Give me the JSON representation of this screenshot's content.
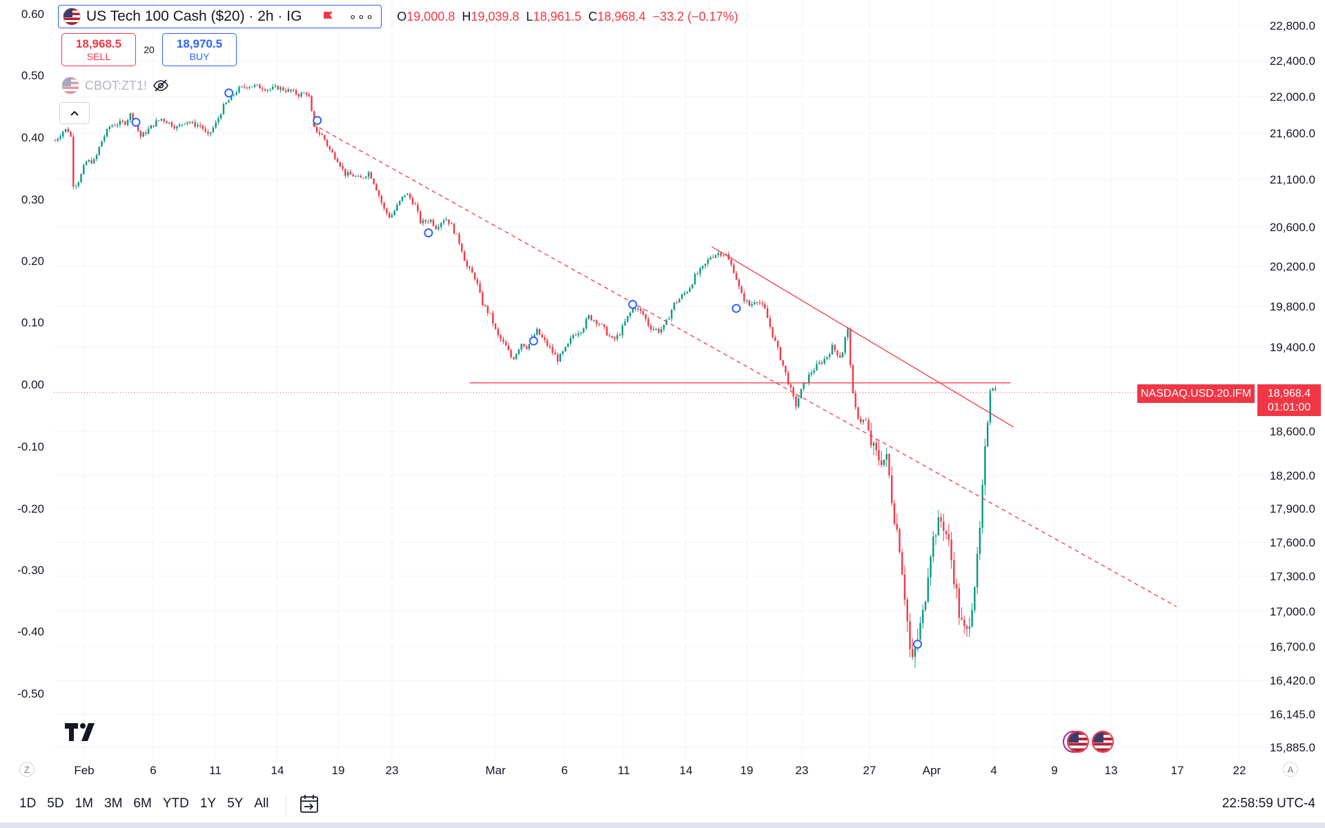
{
  "header": {
    "symbol_title": "US Tech 100 Cash ($20) · 2h · IG",
    "flag_icon": "us-flag-icon",
    "ohlc": {
      "o_label": "O",
      "o_value": "19,000.8",
      "h_label": "H",
      "h_value": "19,039.8",
      "l_label": "L",
      "l_value": "18,961.5",
      "c_label": "C",
      "c_value": "18,968.4",
      "change": "−33.2 (−0.17%)"
    }
  },
  "trade": {
    "sell_price": "18,968.5",
    "sell_label": "SELL",
    "spread": "20",
    "buy_price": "18,970.5",
    "buy_label": "BUY"
  },
  "compare": {
    "symbol": "CBOT:ZT1!"
  },
  "price_tag": {
    "symbol": "NASDAQ.USD.20.IFM",
    "price": "18,968.4",
    "countdown": "01:01:00"
  },
  "bottom": {
    "ranges": [
      "1D",
      "5D",
      "1M",
      "3M",
      "6M",
      "YTD",
      "1Y",
      "5Y",
      "All"
    ],
    "clock": "22:58:59 UTC-4",
    "left_axis_btn": "Z",
    "right_axis_btn": "A"
  },
  "colors": {
    "up": "#089981",
    "down": "#f23645",
    "accent": "#2962ff"
  },
  "chart_data": {
    "type": "candlestick",
    "title": "US Tech 100 Cash ($20) · 2h · IG",
    "right_axis_ticks": [
      "22,800.0",
      "22,400.0",
      "22,000.0",
      "21,600.0",
      "21,100.0",
      "20,600.0",
      "20,200.0",
      "19,800.0",
      "19,400.0",
      "18,600.0",
      "18,200.0",
      "17,900.0",
      "17,600.0",
      "17,300.0",
      "17,000.0",
      "16,700.0",
      "16,420.0",
      "16,145.0",
      "15,885.0"
    ],
    "left_axis_ticks": [
      "0.60",
      "0.50",
      "0.40",
      "0.30",
      "0.20",
      "0.10",
      "0.00",
      "-0.10",
      "-0.20",
      "-0.30",
      "-0.40",
      "-0.50"
    ],
    "x_ticks": [
      "Feb",
      "6",
      "11",
      "14",
      "19",
      "23",
      "Mar",
      "6",
      "11",
      "14",
      "19",
      "23",
      "27",
      "Apr",
      "4",
      "9",
      "13",
      "17",
      "22"
    ],
    "price_path": [
      [
        0.0,
        21520
      ],
      [
        0.6,
        21640
      ],
      [
        1.0,
        21620
      ],
      [
        1.2,
        21020
      ],
      [
        1.6,
        21100
      ],
      [
        2.0,
        21290
      ],
      [
        2.6,
        21300
      ],
      [
        3.0,
        21500
      ],
      [
        3.6,
        21680
      ],
      [
        4.0,
        21700
      ],
      [
        4.6,
        21720
      ],
      [
        5.0,
        21820
      ],
      [
        5.6,
        21560
      ],
      [
        6.0,
        21620
      ],
      [
        6.6,
        21720
      ],
      [
        7.0,
        21760
      ],
      [
        7.6,
        21700
      ],
      [
        8.0,
        21660
      ],
      [
        8.6,
        21740
      ],
      [
        9.0,
        21700
      ],
      [
        9.6,
        21680
      ],
      [
        10.0,
        21560
      ],
      [
        10.6,
        21720
      ],
      [
        11.0,
        21880
      ],
      [
        11.6,
        22000
      ],
      [
        12.0,
        22080
      ],
      [
        12.6,
        22120
      ],
      [
        13.0,
        22120
      ],
      [
        13.6,
        22100
      ],
      [
        14.0,
        22080
      ],
      [
        14.6,
        22100
      ],
      [
        15.0,
        22080
      ],
      [
        15.6,
        22050
      ],
      [
        16.0,
        22020
      ],
      [
        16.6,
        22050
      ],
      [
        17.0,
        21650
      ],
      [
        17.6,
        21560
      ],
      [
        18.0,
        21420
      ],
      [
        18.6,
        21300
      ],
      [
        19.0,
        21160
      ],
      [
        19.6,
        21140
      ],
      [
        20.0,
        21100
      ],
      [
        20.6,
        21180
      ],
      [
        21.0,
        21040
      ],
      [
        21.6,
        20780
      ],
      [
        22.0,
        20700
      ],
      [
        22.6,
        20860
      ],
      [
        23.0,
        20960
      ],
      [
        23.6,
        20840
      ],
      [
        24.0,
        20640
      ],
      [
        24.6,
        20680
      ],
      [
        25.0,
        20600
      ],
      [
        25.6,
        20700
      ],
      [
        26.0,
        20620
      ],
      [
        26.6,
        20420
      ],
      [
        27.0,
        20200
      ],
      [
        27.6,
        20080
      ],
      [
        28.0,
        19840
      ],
      [
        28.6,
        19700
      ],
      [
        29.0,
        19520
      ],
      [
        29.6,
        19400
      ],
      [
        30.0,
        19280
      ],
      [
        30.6,
        19440
      ],
      [
        31.0,
        19400
      ],
      [
        31.6,
        19560
      ],
      [
        32.0,
        19480
      ],
      [
        32.6,
        19360
      ],
      [
        33.0,
        19280
      ],
      [
        33.6,
        19400
      ],
      [
        34.0,
        19520
      ],
      [
        34.6,
        19580
      ],
      [
        35.0,
        19700
      ],
      [
        35.6,
        19650
      ],
      [
        36.0,
        19580
      ],
      [
        36.6,
        19460
      ],
      [
        37.0,
        19520
      ],
      [
        37.6,
        19700
      ],
      [
        38.0,
        19800
      ],
      [
        38.6,
        19720
      ],
      [
        39.0,
        19600
      ],
      [
        39.6,
        19560
      ],
      [
        40.0,
        19600
      ],
      [
        40.6,
        19820
      ],
      [
        41.0,
        19880
      ],
      [
        41.6,
        19980
      ],
      [
        42.0,
        20100
      ],
      [
        42.6,
        20200
      ],
      [
        43.0,
        20300
      ],
      [
        43.6,
        20340
      ],
      [
        44.0,
        20320
      ],
      [
        44.6,
        20140
      ],
      [
        45.0,
        19920
      ],
      [
        45.6,
        19800
      ],
      [
        46.0,
        19880
      ],
      [
        46.6,
        19760
      ],
      [
        47.0,
        19560
      ],
      [
        47.6,
        19300
      ],
      [
        48.0,
        19120
      ],
      [
        48.6,
        18840
      ],
      [
        49.0,
        19000
      ],
      [
        49.6,
        19160
      ],
      [
        50.0,
        19220
      ],
      [
        50.6,
        19300
      ],
      [
        51.0,
        19400
      ],
      [
        51.6,
        19300
      ],
      [
        52.0,
        19600
      ],
      [
        52.4,
        18860
      ],
      [
        52.8,
        18700
      ],
      [
        53.2,
        18700
      ],
      [
        53.6,
        18460
      ],
      [
        54.0,
        18360
      ],
      [
        54.6,
        18340
      ],
      [
        55.0,
        17900
      ],
      [
        55.4,
        17600
      ],
      [
        55.8,
        17100
      ],
      [
        56.2,
        16520
      ],
      [
        56.6,
        16760
      ],
      [
        57.0,
        17000
      ],
      [
        57.4,
        17500
      ],
      [
        57.8,
        17720
      ],
      [
        58.2,
        17800
      ],
      [
        58.6,
        17620
      ],
      [
        59.0,
        17300
      ],
      [
        59.4,
        16920
      ],
      [
        59.8,
        16780
      ],
      [
        60.2,
        17100
      ],
      [
        60.6,
        17500
      ],
      [
        61.0,
        18340
      ],
      [
        61.4,
        19060
      ],
      [
        61.8,
        18968
      ]
    ],
    "trendlines": [
      {
        "style": "dashed",
        "from": [
          16.9,
          21700
        ],
        "to": [
          73.6,
          17040
        ]
      },
      {
        "style": "solid",
        "from": [
          43.1,
          20400
        ],
        "to": [
          62.9,
          18640
        ]
      },
      {
        "style": "solid",
        "from": [
          27.2,
          19060
        ],
        "to": [
          62.7,
          19060
        ]
      }
    ],
    "last_price": 18968.4,
    "y_range": [
      15800,
      23000
    ],
    "x_range": [
      0,
      76
    ]
  }
}
